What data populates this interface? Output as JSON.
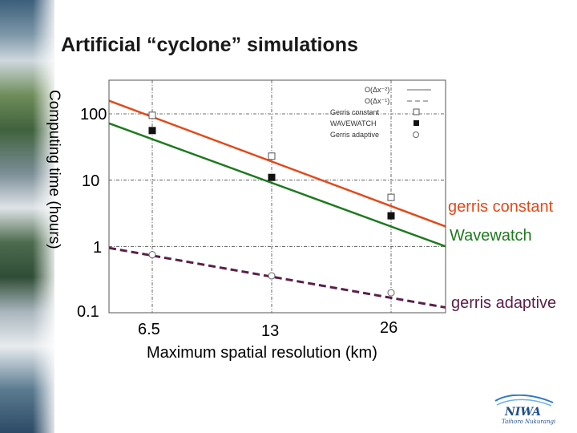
{
  "title": "Artificial “cyclone” simulations",
  "colors": {
    "gerris_constant": "#e24a1a",
    "wavewatch": "#1e7a1e",
    "gerris_adaptive": "#5a1f4a",
    "logo": "#1f4e8c"
  },
  "side_labels": {
    "gerris_constant": "gerris constant",
    "wavewatch": "Wavewatch",
    "gerris_adaptive": "gerris adaptive"
  },
  "logo": {
    "name": "NIWA",
    "subtitle": "Taihoro Nukurangi"
  },
  "chart_data": {
    "type": "line",
    "title": "Artificial “cyclone” simulations",
    "xlabel": "Maximum spatial resolution (km)",
    "ylabel": "Computing time (hours)",
    "y_scale": "log",
    "x_scale": "log",
    "x_tick_labels": [
      "6.5",
      "13",
      "26"
    ],
    "y_tick_labels": [
      "100",
      "10",
      "1",
      "0.1"
    ],
    "y_ticks": [
      100,
      10,
      1,
      0.1
    ],
    "grid": true,
    "legend_position": "top-right",
    "legend": [
      {
        "label": "O(Δx⁻²)",
        "style": "solid-line"
      },
      {
        "label": "O(Δx⁻¹)",
        "style": "dashed-line"
      },
      {
        "label": "Gerris constant",
        "style": "open-square"
      },
      {
        "label": "WAVEWATCH",
        "style": "filled-square"
      },
      {
        "label": "Gerris adaptive",
        "style": "open-circle"
      }
    ],
    "x": [
      6.5,
      13,
      26
    ],
    "series": [
      {
        "name": "Gerris constant",
        "marker": "open-square",
        "values": [
          95,
          23,
          5.5
        ]
      },
      {
        "name": "WAVEWATCH",
        "marker": "filled-square",
        "values": [
          56,
          11,
          2.9
        ]
      },
      {
        "name": "Gerris adaptive",
        "marker": "open-circle",
        "values": [
          0.75,
          0.36,
          0.2
        ]
      }
    ],
    "fits": [
      {
        "name": "gerris constant",
        "order": "O(Δx⁻²)",
        "style": "solid",
        "x_range": [
          4.5,
          40
        ],
        "y_range": [
          158,
          2.0
        ]
      },
      {
        "name": "Wavewatch",
        "order": "O(Δx⁻²)",
        "style": "solid",
        "x_range": [
          4.5,
          40
        ],
        "y_range": [
          72,
          1.0
        ]
      },
      {
        "name": "gerris adaptive",
        "order": "O(Δx⁻¹)",
        "style": "dashed",
        "x_range": [
          4.5,
          40
        ],
        "y_range": [
          0.95,
          0.12
        ]
      }
    ]
  }
}
